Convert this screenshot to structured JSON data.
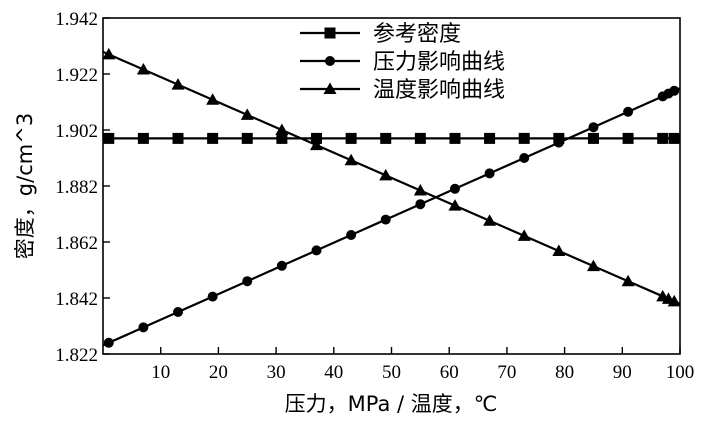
{
  "chart_data": {
    "type": "line",
    "title": "",
    "xlabel": "压力，MPa / 温度，℃",
    "ylabel": "密度，g/cm^3",
    "xlim": [
      0,
      100
    ],
    "ylim": [
      1.822,
      1.942
    ],
    "xticks": [
      10,
      20,
      30,
      40,
      50,
      60,
      70,
      80,
      90,
      100
    ],
    "xtick_labels": [
      "10",
      "20",
      "30",
      "40",
      "50",
      "60",
      "70",
      "80",
      "90",
      "100"
    ],
    "yticks": [
      1.822,
      1.842,
      1.862,
      1.882,
      1.902,
      1.922,
      1.942
    ],
    "ytick_labels": [
      "1.822",
      "1.842",
      "1.862",
      "1.882",
      "1.902",
      "1.922",
      "1.942"
    ],
    "grid": false,
    "legend_position": "top-center",
    "series": [
      {
        "name": "参考密度",
        "marker": "square",
        "x": [
          1,
          7,
          13,
          19,
          25,
          31,
          37,
          43,
          49,
          55,
          61,
          67,
          73,
          79,
          85,
          91,
          97,
          99
        ],
        "y": [
          1.899,
          1.899,
          1.899,
          1.899,
          1.899,
          1.899,
          1.899,
          1.899,
          1.899,
          1.899,
          1.899,
          1.899,
          1.899,
          1.899,
          1.899,
          1.899,
          1.899,
          1.899
        ]
      },
      {
        "name": "压力影响曲线",
        "marker": "circle",
        "x": [
          1,
          7,
          13,
          19,
          25,
          31,
          37,
          43,
          49,
          55,
          61,
          67,
          73,
          79,
          85,
          91,
          97,
          98,
          99
        ],
        "y": [
          1.826,
          1.8315,
          1.837,
          1.8425,
          1.848,
          1.8535,
          1.859,
          1.8645,
          1.87,
          1.8755,
          1.881,
          1.8865,
          1.892,
          1.8975,
          1.903,
          1.9085,
          1.914,
          1.915,
          1.916
        ]
      },
      {
        "name": "温度影响曲线",
        "marker": "triangle",
        "x": [
          1,
          7,
          13,
          19,
          25,
          31,
          37,
          43,
          49,
          55,
          61,
          67,
          73,
          79,
          85,
          91,
          97,
          98,
          99
        ],
        "y": [
          1.929,
          1.9236,
          1.9182,
          1.9128,
          1.9074,
          1.902,
          1.8966,
          1.8912,
          1.8858,
          1.8804,
          1.875,
          1.8696,
          1.8642,
          1.8588,
          1.8534,
          1.848,
          1.8426,
          1.8417,
          1.8408
        ]
      }
    ]
  }
}
